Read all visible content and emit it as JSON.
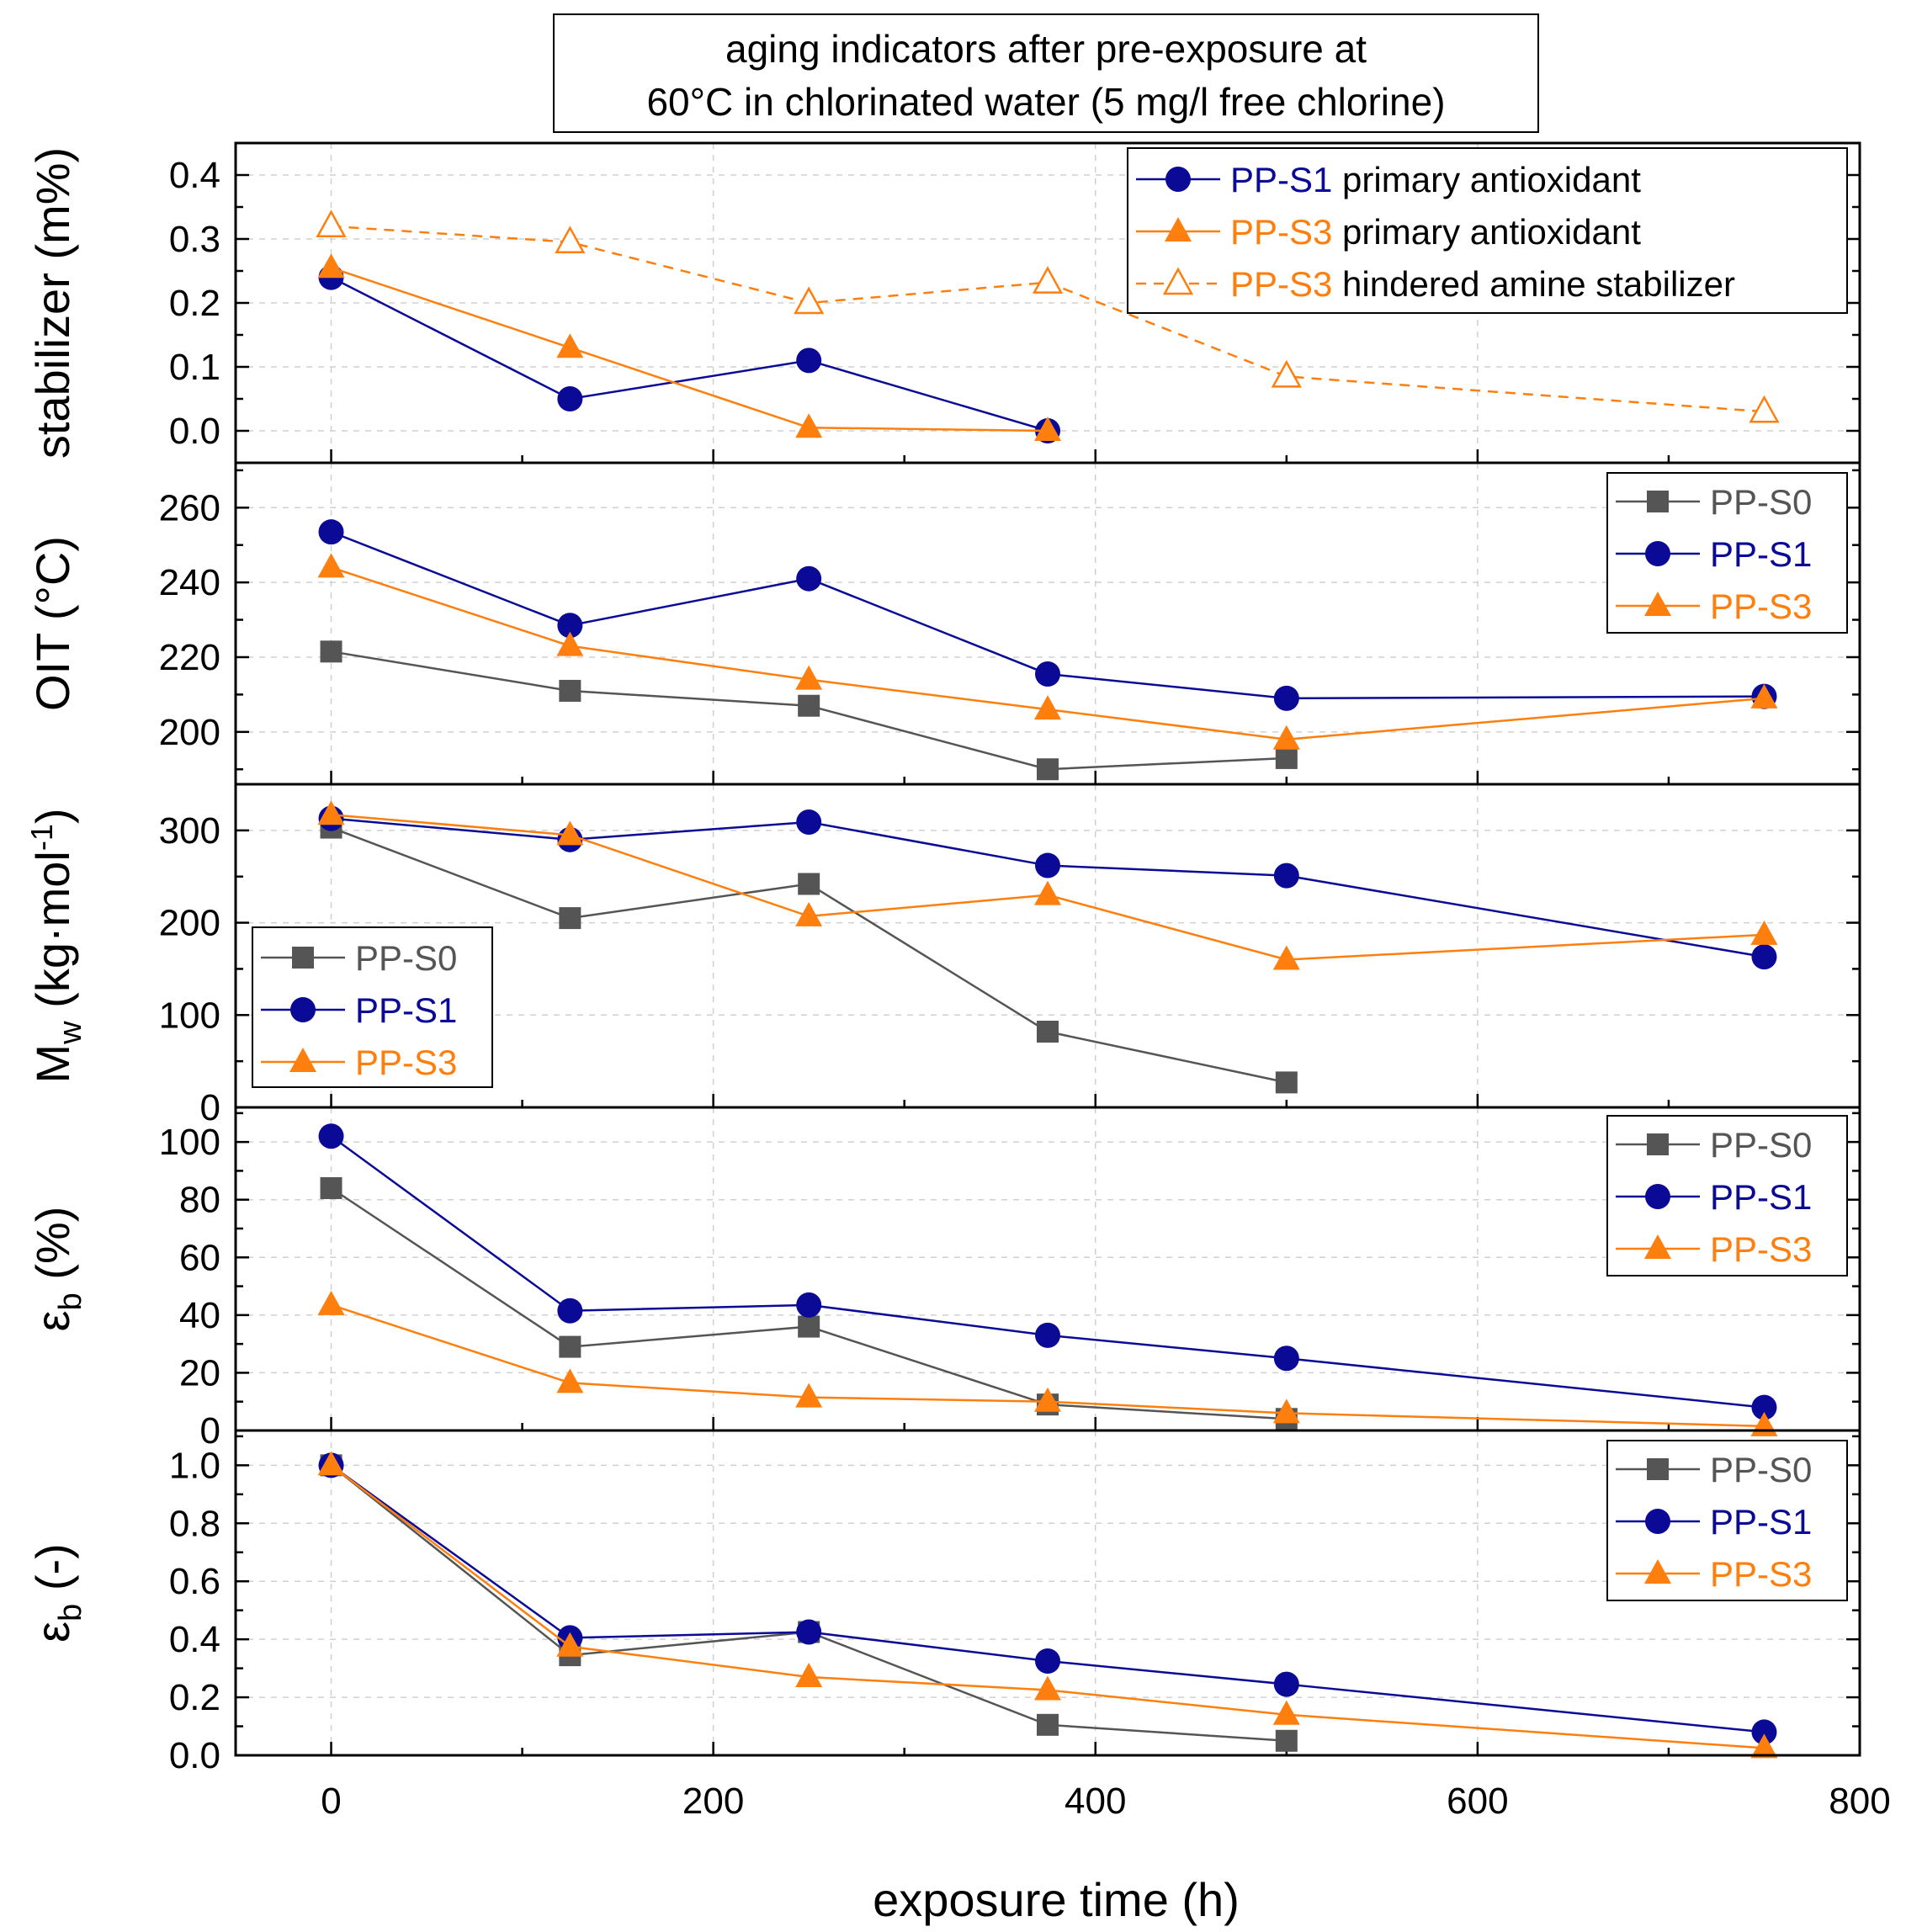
{
  "chart_data": {
    "type": "line",
    "title_lines": [
      "aging indicators after pre-exposure at",
      "60°C in chlorinated water (5 mg/l free chlorine)"
    ],
    "x": {
      "label": "exposure time (h)",
      "range": [
        -50,
        800
      ],
      "ticks": [
        0,
        200,
        400,
        600,
        800
      ],
      "tick_labels": [
        "0",
        "200",
        "400",
        "600",
        "800"
      ],
      "minor_step": 100
    },
    "colors": {
      "PP-S0": "#555555",
      "PP-S1": "#0a0a96",
      "PP-S3": "#ff7f0e"
    },
    "panels": [
      {
        "id": "stabilizer",
        "ylabel": "stabilizer (m%)",
        "ylim": [
          -0.05,
          0.45
        ],
        "yticks": [
          0.0,
          0.1,
          0.2,
          0.3,
          0.4
        ],
        "ytick_labels": [
          "0.0",
          "0.1",
          "0.2",
          "0.3",
          "0.4"
        ],
        "legend_loc": "top-right",
        "series": [
          {
            "name": "PP-S1",
            "label_desc": "primary antioxidant",
            "marker": "circle",
            "line": "solid",
            "x": [
              0,
              125,
              250,
              375
            ],
            "y": [
              0.24,
              0.05,
              0.11,
              0.0
            ]
          },
          {
            "name": "PP-S3",
            "label_desc": "primary antioxidant",
            "marker": "triangle",
            "line": "solid",
            "x": [
              0,
              125,
              250,
              375
            ],
            "y": [
              0.255,
              0.13,
              0.005,
              0.0
            ]
          },
          {
            "name": "PP-S3",
            "label_desc": "hindered amine stabilizer",
            "marker": "triangle-open",
            "line": "dashed",
            "x": [
              0,
              125,
              250,
              375,
              500,
              750
            ],
            "y": [
              0.32,
              0.295,
              0.2,
              0.232,
              0.085,
              0.03
            ]
          }
        ]
      },
      {
        "id": "oit",
        "ylabel": "OIT (°C)",
        "ylim": [
          186,
          272
        ],
        "yticks": [
          200,
          220,
          240,
          260
        ],
        "ytick_labels": [
          "200",
          "220",
          "240",
          "260"
        ],
        "legend_loc": "top-right",
        "series": [
          {
            "name": "PP-S0",
            "marker": "square",
            "line": "solid",
            "x": [
              0,
              125,
              250,
              375,
              500
            ],
            "y": [
              221.5,
              211,
              207,
              190,
              193
            ]
          },
          {
            "name": "PP-S1",
            "marker": "circle",
            "line": "solid",
            "x": [
              0,
              125,
              250,
              375,
              500,
              750
            ],
            "y": [
              253.5,
              228.5,
              241,
              215.5,
              209,
              209.5
            ]
          },
          {
            "name": "PP-S3",
            "marker": "triangle",
            "line": "solid",
            "x": [
              0,
              125,
              250,
              375,
              500,
              750
            ],
            "y": [
              244,
              223,
              214,
              206,
              198,
              209
            ]
          }
        ]
      },
      {
        "id": "mw",
        "ylabel_main": "M",
        "ylabel_sub": "w",
        "ylabel_tail": " (kg·mol",
        "ylabel_sup": "-1",
        "ylabel_end": ")",
        "ylim": [
          0,
          350
        ],
        "yticks": [
          0,
          100,
          200,
          300
        ],
        "ytick_labels": [
          "0",
          "100",
          "200",
          "300"
        ],
        "legend_loc": "bottom-left",
        "series": [
          {
            "name": "PP-S0",
            "marker": "square",
            "line": "solid",
            "x": [
              0,
              125,
              250,
              375,
              500
            ],
            "y": [
              303,
              205,
              242,
              82,
              27
            ]
          },
          {
            "name": "PP-S1",
            "marker": "circle",
            "line": "solid",
            "x": [
              0,
              125,
              250,
              375,
              500,
              750
            ],
            "y": [
              313,
              290,
              309,
              262,
              251,
              163
            ]
          },
          {
            "name": "PP-S3",
            "marker": "triangle",
            "line": "solid",
            "x": [
              0,
              125,
              250,
              375,
              500,
              750
            ],
            "y": [
              317,
              295,
              207,
              230,
              160,
              187
            ]
          }
        ]
      },
      {
        "id": "eb_pct",
        "ylabel_main": "ε",
        "ylabel_sub": "b",
        "ylabel_tail": " (%)",
        "ylim": [
          0,
          112
        ],
        "yticks": [
          0,
          20,
          40,
          60,
          80,
          100
        ],
        "ytick_labels": [
          "0",
          "20",
          "40",
          "60",
          "80",
          "100"
        ],
        "legend_loc": "top-right",
        "series": [
          {
            "name": "PP-S0",
            "marker": "square",
            "line": "solid",
            "x": [
              0,
              125,
              250,
              375,
              500
            ],
            "y": [
              84,
              29,
              36,
              9,
              4
            ]
          },
          {
            "name": "PP-S1",
            "marker": "circle",
            "line": "solid",
            "x": [
              0,
              125,
              250,
              375,
              500,
              750
            ],
            "y": [
              102,
              41.5,
              43.5,
              33,
              25,
              8
            ]
          },
          {
            "name": "PP-S3",
            "marker": "triangle",
            "line": "solid",
            "x": [
              0,
              125,
              250,
              375,
              500,
              750
            ],
            "y": [
              43.5,
              16.5,
              11.5,
              10,
              6,
              1.5
            ]
          }
        ]
      },
      {
        "id": "eb_rel",
        "ylabel_main": "ε",
        "ylabel_sub": "b",
        "ylabel_tail": " (-)",
        "ylim": [
          0,
          1.12
        ],
        "yticks": [
          0.0,
          0.2,
          0.4,
          0.6,
          0.8,
          1.0
        ],
        "ytick_labels": [
          "0.0",
          "0.2",
          "0.4",
          "0.6",
          "0.8",
          "1.0"
        ],
        "legend_loc": "top-right",
        "series": [
          {
            "name": "PP-S0",
            "marker": "square",
            "line": "solid",
            "x": [
              0,
              125,
              250,
              375,
              500
            ],
            "y": [
              1.0,
              0.345,
              0.425,
              0.105,
              0.05
            ]
          },
          {
            "name": "PP-S1",
            "marker": "circle",
            "line": "solid",
            "x": [
              0,
              125,
              250,
              375,
              500,
              750
            ],
            "y": [
              1.0,
              0.405,
              0.425,
              0.325,
              0.245,
              0.08
            ]
          },
          {
            "name": "PP-S3",
            "marker": "triangle",
            "line": "solid",
            "x": [
              0,
              125,
              250,
              375,
              500,
              750
            ],
            "y": [
              1.0,
              0.375,
              0.27,
              0.225,
              0.14,
              0.025
            ]
          }
        ]
      }
    ]
  }
}
